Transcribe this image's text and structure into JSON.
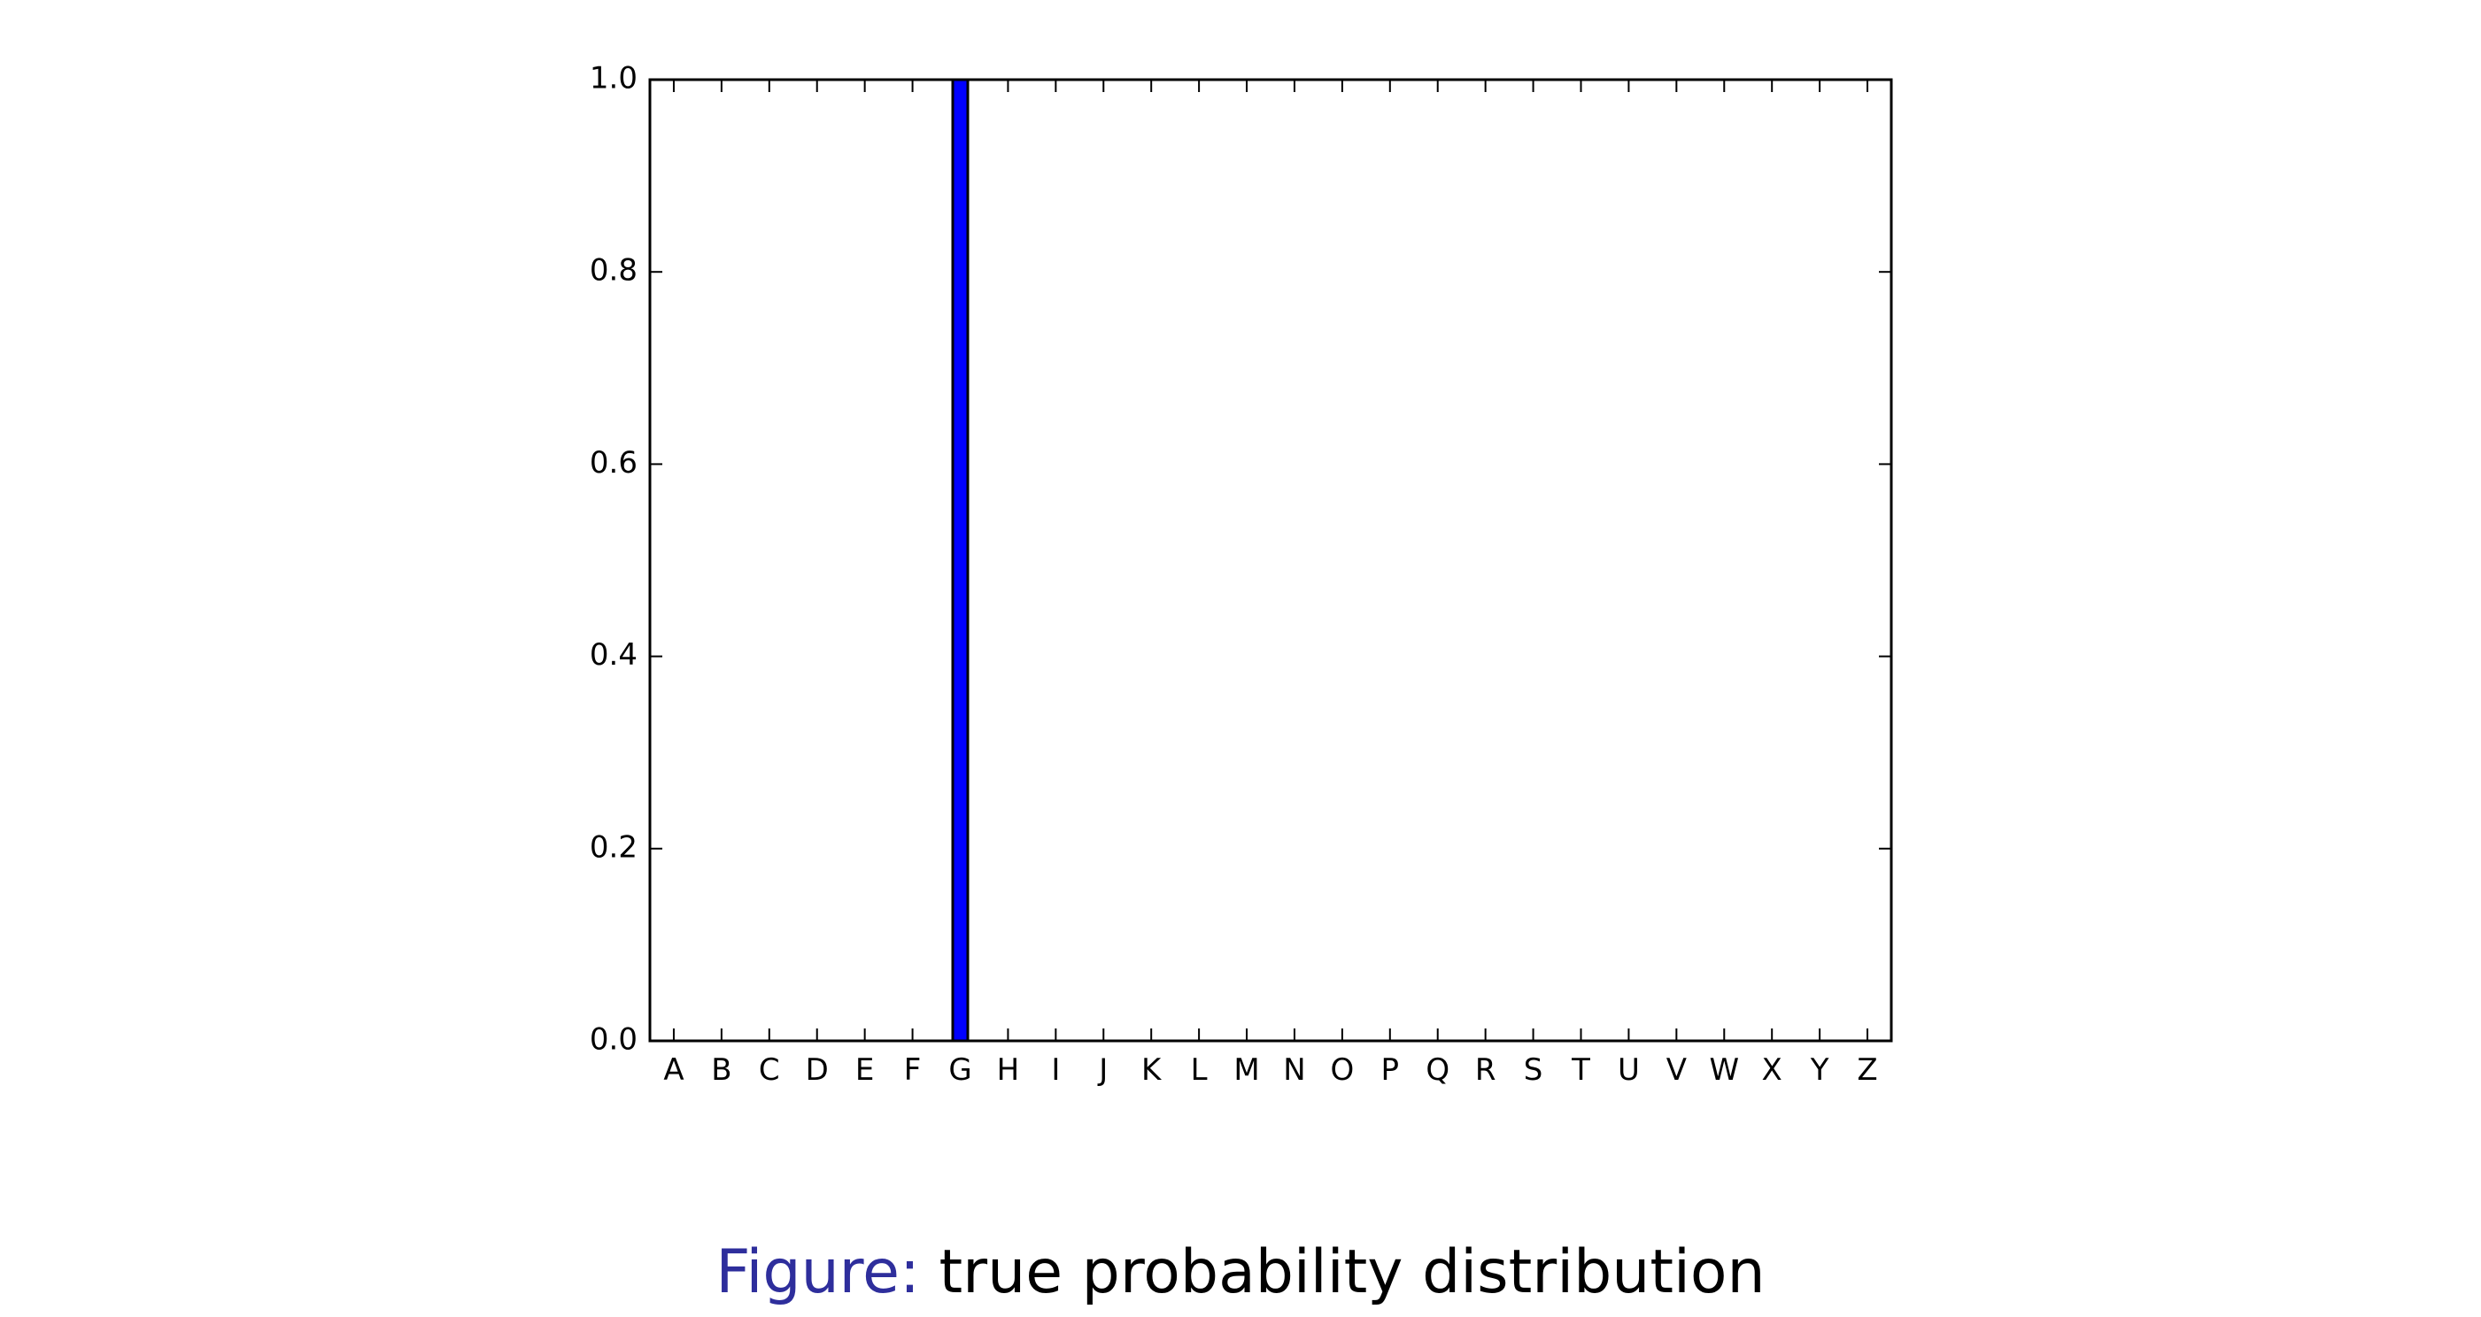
{
  "chart_data": {
    "type": "bar",
    "categories": [
      "A",
      "B",
      "C",
      "D",
      "E",
      "F",
      "G",
      "H",
      "I",
      "J",
      "K",
      "L",
      "M",
      "N",
      "O",
      "P",
      "Q",
      "R",
      "S",
      "T",
      "U",
      "V",
      "W",
      "X",
      "Y",
      "Z"
    ],
    "values": [
      0,
      0,
      0,
      0,
      0,
      0,
      1.0,
      0,
      0,
      0,
      0,
      0,
      0,
      0,
      0,
      0,
      0,
      0,
      0,
      0,
      0,
      0,
      0,
      0,
      0,
      0
    ],
    "title": "",
    "xlabel": "",
    "ylabel": "",
    "ylim": [
      0,
      1.0
    ],
    "yticks": [
      0.0,
      0.2,
      0.4,
      0.6,
      0.8,
      1.0
    ],
    "ytick_labels": [
      "0.0",
      "0.2",
      "0.4",
      "0.6",
      "0.8",
      "1.0"
    ],
    "bar_color": "#0000ff",
    "grid": false,
    "legend": "none"
  },
  "caption": {
    "prefix": "Figure:",
    "text": " true probability distribution"
  }
}
